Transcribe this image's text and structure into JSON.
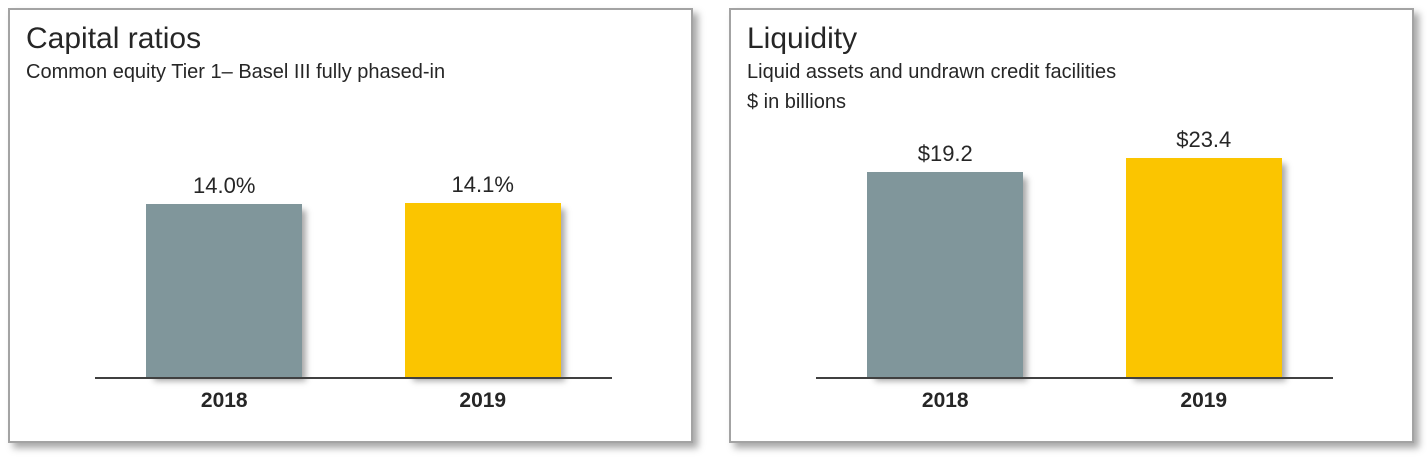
{
  "colors": {
    "bar_2018": "#80969B",
    "bar_2019": "#FBC500",
    "panel_border": "#A3A3A3",
    "axis_line": "#404040",
    "text": "#262626",
    "background": "#FFFFFF"
  },
  "chart_data": [
    {
      "type": "bar",
      "title": "Capital ratios",
      "subtitle_lines": [
        "Common equity Tier 1– Basel III fully phased-in"
      ],
      "categories": [
        "2018",
        "2019"
      ],
      "values": [
        14.0,
        14.1
      ],
      "data_labels": [
        "14.0%",
        "14.1%"
      ],
      "series_colors": [
        "#80969B",
        "#FBC500"
      ],
      "y_axis": "hidden",
      "gridlines": false,
      "legend": "none",
      "baseline": 0
    },
    {
      "type": "bar",
      "title": "Liquidity",
      "subtitle_lines": [
        "Liquid assets and undrawn credit facilities",
        "$ in billions"
      ],
      "categories": [
        "2018",
        "2019"
      ],
      "values": [
        19.2,
        23.4
      ],
      "data_labels": [
        "$19.2",
        "$23.4"
      ],
      "series_colors": [
        "#80969B",
        "#FBC500"
      ],
      "y_axis": "hidden",
      "gridlines": false,
      "legend": "none",
      "baseline": 0
    }
  ]
}
